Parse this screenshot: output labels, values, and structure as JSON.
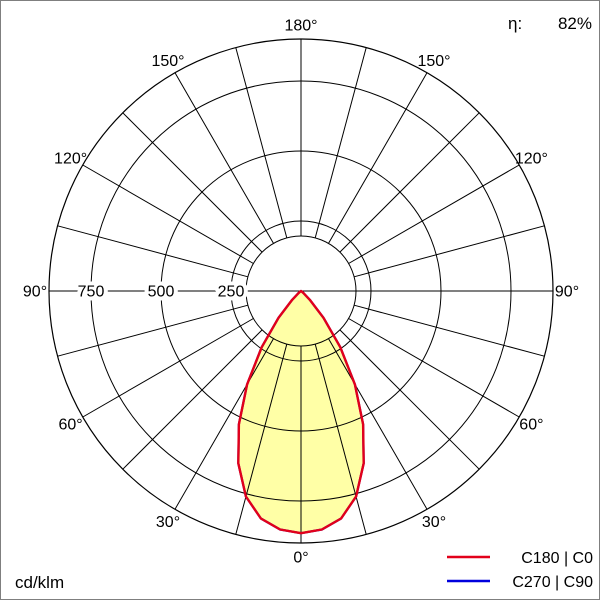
{
  "header": {
    "eta_label": "η:",
    "eta_value": "82%"
  },
  "footer": {
    "unit": "cd/klm"
  },
  "legend": {
    "items": [
      {
        "label": "C180 | C0",
        "color": "#e2001a"
      },
      {
        "label": "C270 | C90",
        "color": "#0000dd"
      }
    ]
  },
  "chart_data": {
    "type": "line",
    "subtype": "polar-photometric-luminous-intensity",
    "title": "",
    "unit": "cd/klm",
    "efficiency_percent": 82,
    "angle_tick_labels_deg": [
      0,
      30,
      60,
      90,
      120,
      150,
      180
    ],
    "spoke_step_deg": 15,
    "radial_ticks": [
      250,
      500,
      750
    ],
    "radial_max": 900,
    "grid": true,
    "legend_position": "bottom-right",
    "fill_color": "#ffffa6",
    "series": [
      {
        "name": "C180 | C0",
        "color": "#e2001a",
        "gamma_deg": [
          0,
          5,
          10,
          15,
          20,
          25,
          30,
          35,
          40,
          45,
          50,
          55,
          60,
          65,
          70,
          75,
          80,
          85,
          90
        ],
        "values": [
          865,
          855,
          825,
          760,
          655,
          525,
          385,
          245,
          125,
          45,
          12,
          2,
          0,
          0,
          0,
          0,
          0,
          0,
          0
        ]
      },
      {
        "name": "C270 | C90",
        "color": "#0000dd",
        "gamma_deg": [
          0,
          5,
          10,
          15,
          20,
          25,
          30,
          35,
          40,
          45,
          50,
          55,
          60,
          65,
          70,
          75,
          80,
          85,
          90
        ],
        "values": [
          865,
          855,
          825,
          760,
          655,
          525,
          385,
          245,
          125,
          45,
          12,
          2,
          0,
          0,
          0,
          0,
          0,
          0,
          0
        ]
      }
    ]
  }
}
